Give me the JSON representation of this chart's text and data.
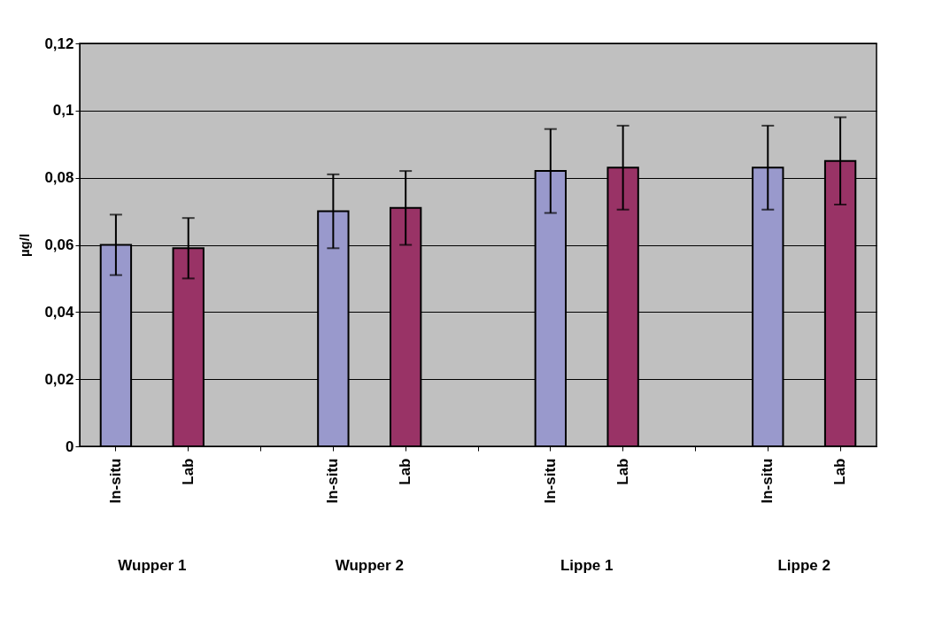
{
  "chart_data": {
    "type": "bar",
    "ylabel": "µg/l",
    "categories": [
      "In-situ",
      "Lab",
      null,
      "In-situ",
      "Lab",
      null,
      "In-situ",
      "Lab",
      null,
      "In-situ",
      "Lab"
    ],
    "values": [
      0.06,
      0.059,
      null,
      0.07,
      0.071,
      null,
      0.082,
      0.083,
      null,
      0.083,
      0.085
    ],
    "errors": [
      0.009,
      0.009,
      null,
      0.011,
      0.011,
      null,
      0.0125,
      0.0125,
      null,
      0.0125,
      0.013
    ],
    "colors": [
      "#9999cc",
      "#993366",
      null,
      "#9999cc",
      "#993366",
      null,
      "#9999cc",
      "#993366",
      null,
      "#9999cc",
      "#993366"
    ],
    "ylim": [
      0,
      0.12
    ],
    "yticks": [
      0,
      {
        "value": 0.02,
        "label": "0,02"
      },
      {
        "value": 0.04,
        "label": "0,04"
      },
      {
        "value": 0.06,
        "label": "0,06"
      },
      {
        "value": 0.08,
        "label": "0,08"
      },
      {
        "value": 0.1,
        "label": "0,1"
      },
      {
        "value": 0.12,
        "label": "0,12"
      }
    ],
    "grid": "y",
    "annotations": [
      "Wupper 1",
      "Wupper 2",
      "Lippe 1",
      "Lippe 2"
    ]
  }
}
